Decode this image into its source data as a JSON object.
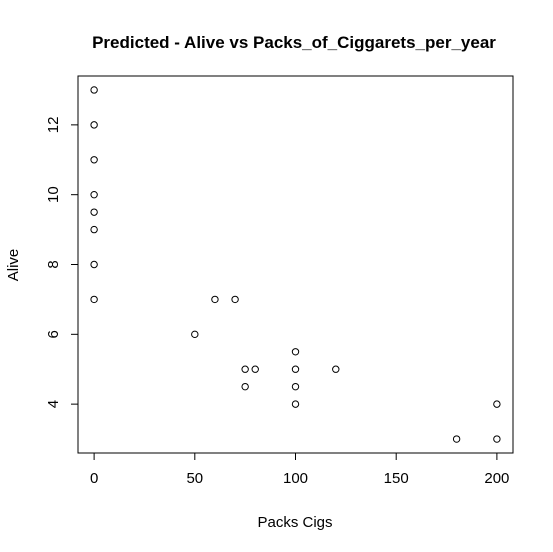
{
  "chart_data": {
    "type": "scatter",
    "title": "Predicted - Alive vs Packs_of_Ciggarets_per_year",
    "xlabel": "Packs Cigs",
    "ylabel": "Alive",
    "xlim": [
      -8,
      208
    ],
    "ylim": [
      2.6,
      13.4
    ],
    "xticks": [
      0,
      50,
      100,
      150,
      200
    ],
    "yticks": [
      4,
      6,
      8,
      10,
      12
    ],
    "xtick_labels": [
      "0",
      "50",
      "100",
      "150",
      "200"
    ],
    "ytick_labels": [
      "4",
      "6",
      "8",
      "10",
      "12"
    ],
    "grid": false,
    "marker": "open-circle",
    "points": [
      {
        "x": 0,
        "y": 13
      },
      {
        "x": 0,
        "y": 12
      },
      {
        "x": 0,
        "y": 11
      },
      {
        "x": 0,
        "y": 10
      },
      {
        "x": 0,
        "y": 9.5
      },
      {
        "x": 0,
        "y": 9
      },
      {
        "x": 0,
        "y": 8
      },
      {
        "x": 0,
        "y": 7
      },
      {
        "x": 50,
        "y": 6
      },
      {
        "x": 60,
        "y": 7
      },
      {
        "x": 70,
        "y": 7
      },
      {
        "x": 75,
        "y": 5
      },
      {
        "x": 75,
        "y": 4.5
      },
      {
        "x": 80,
        "y": 5
      },
      {
        "x": 100,
        "y": 5.5
      },
      {
        "x": 100,
        "y": 5
      },
      {
        "x": 100,
        "y": 4.5
      },
      {
        "x": 100,
        "y": 4
      },
      {
        "x": 120,
        "y": 5
      },
      {
        "x": 180,
        "y": 3
      },
      {
        "x": 200,
        "y": 4
      },
      {
        "x": 200,
        "y": 3
      }
    ]
  }
}
